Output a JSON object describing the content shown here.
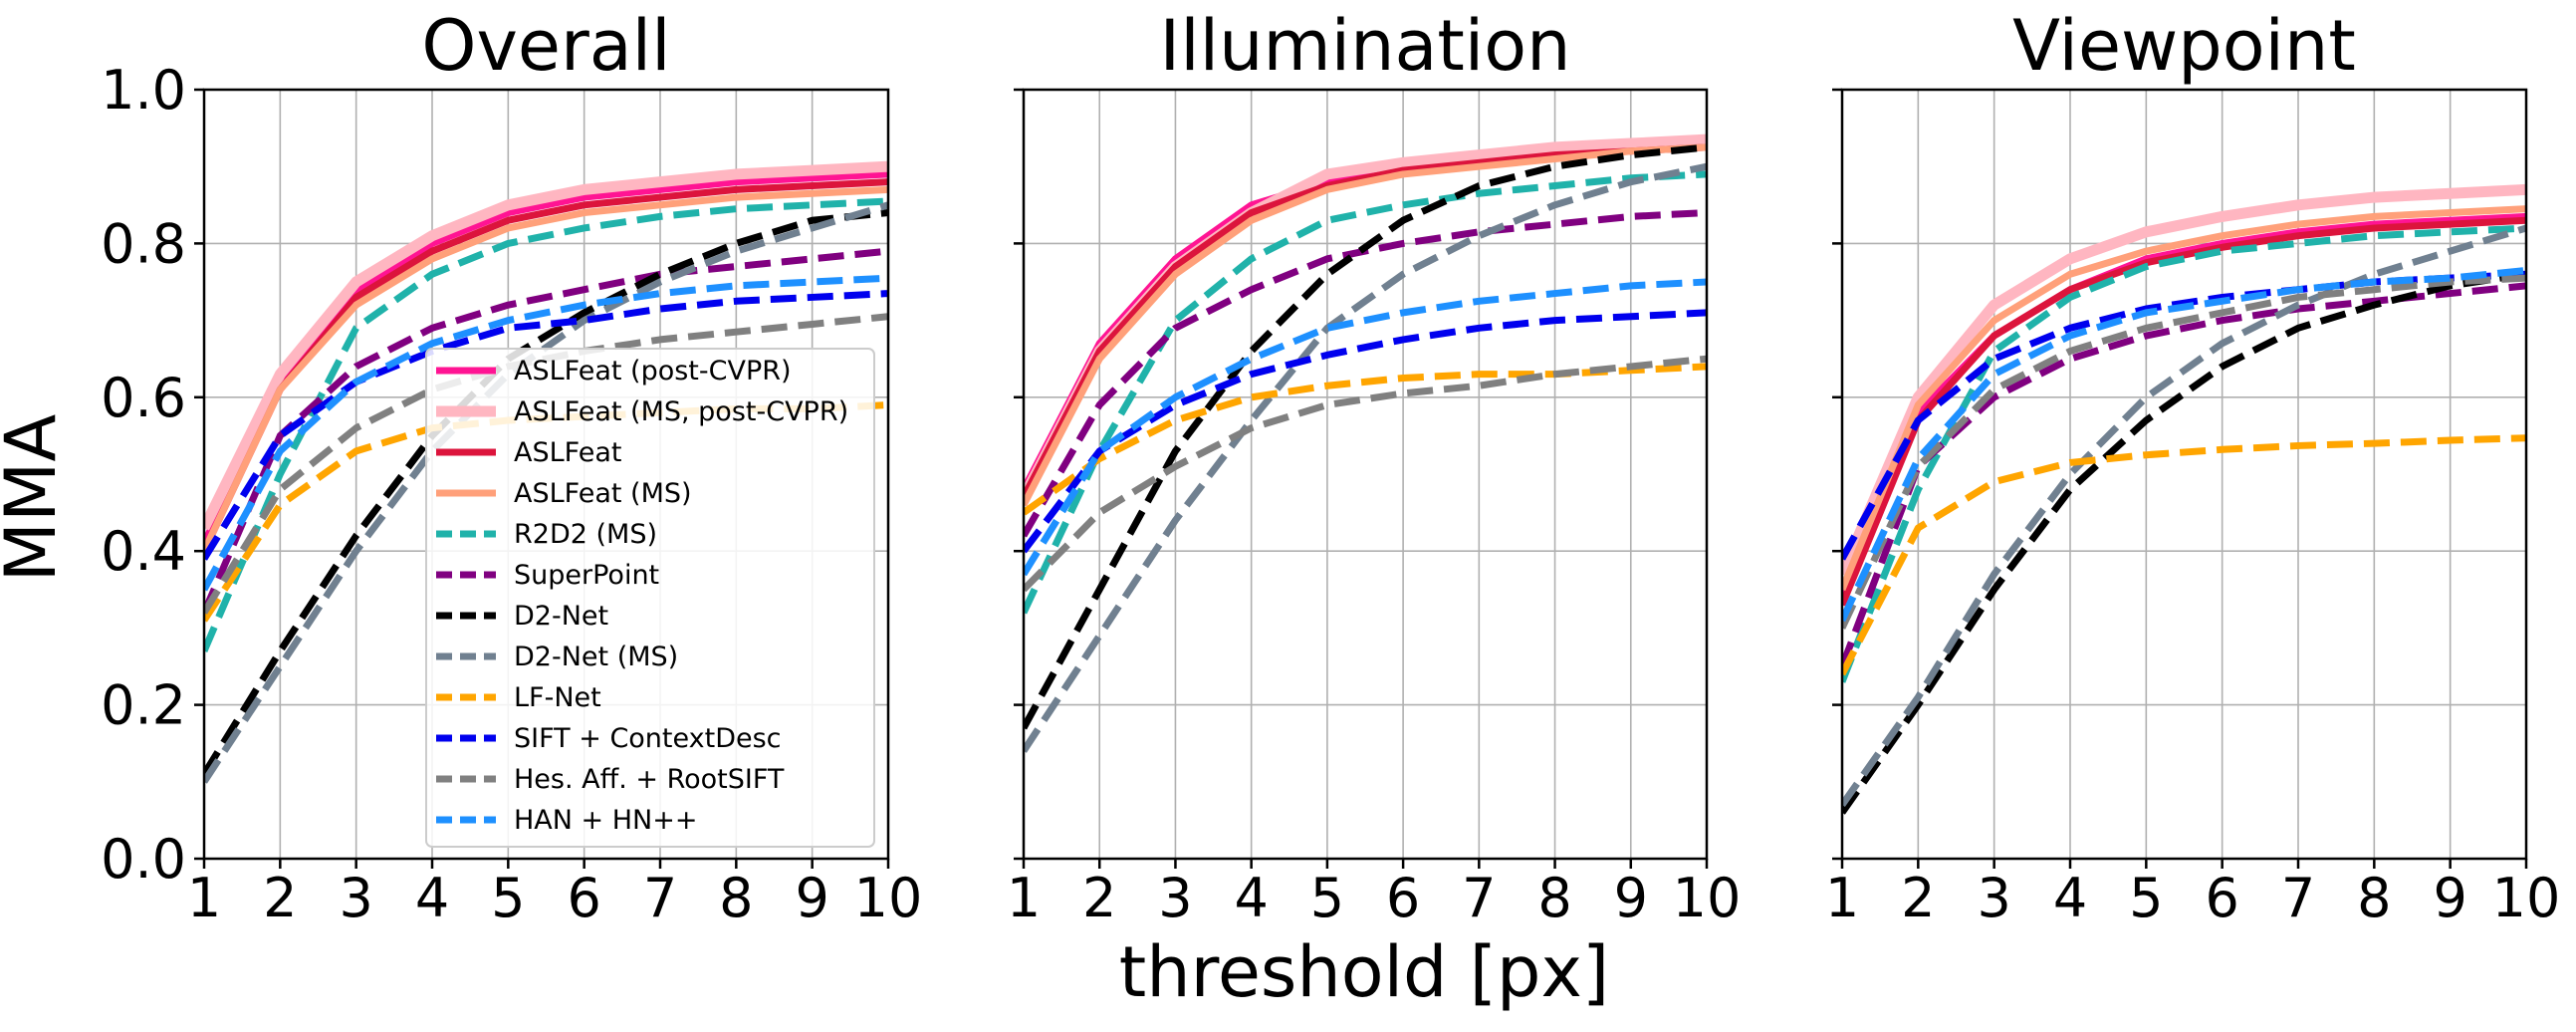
{
  "chart_data": {
    "type": "line",
    "ylabel": "MMA",
    "xlabel": "threshold [px]",
    "ylim": [
      0,
      1
    ],
    "xlim": [
      1,
      10
    ],
    "xticks": [
      "1",
      "2",
      "3",
      "4",
      "5",
      "6",
      "7",
      "8",
      "9",
      "10"
    ],
    "yticks": [
      "0.0",
      "0.2",
      "0.4",
      "0.6",
      "0.8",
      "1.0"
    ],
    "grid": true,
    "legend_position": "inside lower-right of first panel",
    "series_styles": [
      {
        "name": "ASLFeat (post-CVPR)",
        "color": "#ff1493",
        "dash": "solid",
        "width": 7
      },
      {
        "name": "ASLFeat (MS, post-CVPR)",
        "color": "#ffb6c1",
        "dash": "solid",
        "width": 11
      },
      {
        "name": "ASLFeat",
        "color": "#dc143c",
        "dash": "solid",
        "width": 7
      },
      {
        "name": "ASLFeat (MS)",
        "color": "#ffa07a",
        "dash": "solid",
        "width": 7
      },
      {
        "name": "R2D2 (MS)",
        "color": "#20b2aa",
        "dash": "dashed",
        "width": 7
      },
      {
        "name": "SuperPoint",
        "color": "#800080",
        "dash": "dashed",
        "width": 7
      },
      {
        "name": "D2-Net",
        "color": "#000000",
        "dash": "dashed",
        "width": 7
      },
      {
        "name": "D2-Net (MS)",
        "color": "#708090",
        "dash": "dashed",
        "width": 7
      },
      {
        "name": "LF-Net",
        "color": "#ffa500",
        "dash": "dashed",
        "width": 7
      },
      {
        "name": "SIFT + ContextDesc",
        "color": "#0000ee",
        "dash": "dashed",
        "width": 7
      },
      {
        "name": "Hes. Aff. + RootSIFT",
        "color": "#808080",
        "dash": "dashed",
        "width": 7
      },
      {
        "name": "HAN + HN++",
        "color": "#1e90ff",
        "dash": "dashed",
        "width": 7
      }
    ],
    "panels": [
      {
        "title": "Overall",
        "x": [
          1,
          2,
          3,
          4,
          5,
          6,
          7,
          8,
          9,
          10
        ],
        "series": [
          {
            "name": "ASLFeat (post-CVPR)",
            "values": [
              0.41,
              0.62,
              0.74,
              0.8,
              0.84,
              0.86,
              0.87,
              0.88,
              0.885,
              0.89
            ]
          },
          {
            "name": "ASLFeat (MS, post-CVPR)",
            "values": [
              0.43,
              0.63,
              0.75,
              0.81,
              0.85,
              0.87,
              0.88,
              0.89,
              0.895,
              0.9
            ]
          },
          {
            "name": "ASLFeat",
            "values": [
              0.4,
              0.61,
              0.73,
              0.79,
              0.83,
              0.85,
              0.86,
              0.87,
              0.875,
              0.88
            ]
          },
          {
            "name": "ASLFeat (MS)",
            "values": [
              0.4,
              0.61,
              0.72,
              0.78,
              0.82,
              0.84,
              0.85,
              0.86,
              0.865,
              0.87
            ]
          },
          {
            "name": "R2D2 (MS)",
            "values": [
              0.27,
              0.5,
              0.69,
              0.76,
              0.8,
              0.82,
              0.835,
              0.845,
              0.85,
              0.855
            ]
          },
          {
            "name": "SuperPoint",
            "values": [
              0.32,
              0.55,
              0.64,
              0.69,
              0.72,
              0.74,
              0.76,
              0.77,
              0.78,
              0.79
            ]
          },
          {
            "name": "D2-Net",
            "values": [
              0.11,
              0.27,
              0.42,
              0.55,
              0.65,
              0.71,
              0.76,
              0.8,
              0.83,
              0.84
            ]
          },
          {
            "name": "D2-Net (MS)",
            "values": [
              0.1,
              0.25,
              0.4,
              0.53,
              0.63,
              0.7,
              0.75,
              0.79,
              0.82,
              0.85
            ]
          },
          {
            "name": "LF-Net",
            "values": [
              0.31,
              0.46,
              0.53,
              0.56,
              0.57,
              0.575,
              0.58,
              0.585,
              0.585,
              0.59
            ]
          },
          {
            "name": "SIFT + ContextDesc",
            "values": [
              0.39,
              0.55,
              0.62,
              0.66,
              0.69,
              0.7,
              0.715,
              0.725,
              0.73,
              0.735
            ]
          },
          {
            "name": "Hes. Aff. + RootSIFT",
            "values": [
              0.32,
              0.48,
              0.56,
              0.61,
              0.64,
              0.66,
              0.675,
              0.685,
              0.695,
              0.705
            ]
          },
          {
            "name": "HAN + HN++",
            "values": [
              0.35,
              0.53,
              0.62,
              0.67,
              0.7,
              0.72,
              0.735,
              0.745,
              0.75,
              0.755
            ]
          }
        ]
      },
      {
        "title": "Illumination",
        "x": [
          1,
          2,
          3,
          4,
          5,
          6,
          7,
          8,
          9,
          10
        ],
        "series": [
          {
            "name": "ASLFeat (post-CVPR)",
            "values": [
              0.48,
              0.67,
              0.78,
              0.85,
              0.88,
              0.9,
              0.91,
              0.92,
              0.925,
              0.93
            ]
          },
          {
            "name": "ASLFeat (MS, post-CVPR)",
            "values": [
              0.47,
              0.66,
              0.77,
              0.84,
              0.89,
              0.905,
              0.915,
              0.925,
              0.93,
              0.935
            ]
          },
          {
            "name": "ASLFeat",
            "values": [
              0.47,
              0.66,
              0.77,
              0.84,
              0.875,
              0.895,
              0.905,
              0.915,
              0.92,
              0.925
            ]
          },
          {
            "name": "ASLFeat (MS)",
            "values": [
              0.46,
              0.65,
              0.76,
              0.83,
              0.87,
              0.89,
              0.9,
              0.91,
              0.92,
              0.925
            ]
          },
          {
            "name": "R2D2 (MS)",
            "values": [
              0.32,
              0.53,
              0.7,
              0.78,
              0.83,
              0.85,
              0.865,
              0.875,
              0.885,
              0.89
            ]
          },
          {
            "name": "SuperPoint",
            "values": [
              0.42,
              0.59,
              0.69,
              0.74,
              0.78,
              0.8,
              0.815,
              0.825,
              0.835,
              0.84
            ]
          },
          {
            "name": "D2-Net",
            "values": [
              0.17,
              0.35,
              0.53,
              0.66,
              0.76,
              0.83,
              0.875,
              0.9,
              0.915,
              0.925
            ]
          },
          {
            "name": "D2-Net (MS)",
            "values": [
              0.14,
              0.29,
              0.44,
              0.57,
              0.69,
              0.76,
              0.81,
              0.85,
              0.88,
              0.9
            ]
          },
          {
            "name": "LF-Net",
            "values": [
              0.45,
              0.52,
              0.57,
              0.6,
              0.615,
              0.625,
              0.63,
              0.63,
              0.635,
              0.64
            ]
          },
          {
            "name": "SIFT + ContextDesc",
            "values": [
              0.4,
              0.53,
              0.59,
              0.63,
              0.655,
              0.675,
              0.69,
              0.7,
              0.705,
              0.71
            ]
          },
          {
            "name": "Hes. Aff. + RootSIFT",
            "values": [
              0.35,
              0.45,
              0.51,
              0.56,
              0.59,
              0.605,
              0.615,
              0.63,
              0.64,
              0.65
            ]
          },
          {
            "name": "HAN + HN++",
            "values": [
              0.37,
              0.53,
              0.6,
              0.65,
              0.69,
              0.71,
              0.725,
              0.735,
              0.745,
              0.75
            ]
          }
        ]
      },
      {
        "title": "Viewpoint",
        "x": [
          1,
          2,
          3,
          4,
          5,
          6,
          7,
          8,
          9,
          10
        ],
        "series": [
          {
            "name": "ASLFeat (post-CVPR)",
            "values": [
              0.34,
              0.58,
              0.68,
              0.74,
              0.78,
              0.8,
              0.815,
              0.825,
              0.83,
              0.835
            ]
          },
          {
            "name": "ASLFeat (MS, post-CVPR)",
            "values": [
              0.37,
              0.6,
              0.72,
              0.78,
              0.815,
              0.835,
              0.85,
              0.86,
              0.865,
              0.87
            ]
          },
          {
            "name": "ASLFeat",
            "values": [
              0.33,
              0.57,
              0.68,
              0.74,
              0.775,
              0.795,
              0.81,
              0.82,
              0.825,
              0.83
            ]
          },
          {
            "name": "ASLFeat (MS)",
            "values": [
              0.35,
              0.59,
              0.7,
              0.76,
              0.79,
              0.81,
              0.825,
              0.835,
              0.84,
              0.845
            ]
          },
          {
            "name": "R2D2 (MS)",
            "values": [
              0.23,
              0.48,
              0.66,
              0.73,
              0.77,
              0.79,
              0.8,
              0.81,
              0.815,
              0.82
            ]
          },
          {
            "name": "SuperPoint",
            "values": [
              0.25,
              0.51,
              0.6,
              0.65,
              0.68,
              0.7,
              0.715,
              0.725,
              0.735,
              0.745
            ]
          },
          {
            "name": "D2-Net",
            "values": [
              0.06,
              0.2,
              0.35,
              0.48,
              0.57,
              0.64,
              0.69,
              0.72,
              0.745,
              0.76
            ]
          },
          {
            "name": "D2-Net (MS)",
            "values": [
              0.07,
              0.21,
              0.37,
              0.5,
              0.6,
              0.67,
              0.72,
              0.76,
              0.79,
              0.82
            ]
          },
          {
            "name": "LF-Net",
            "values": [
              0.24,
              0.43,
              0.49,
              0.515,
              0.525,
              0.532,
              0.537,
              0.54,
              0.544,
              0.547
            ]
          },
          {
            "name": "SIFT + ContextDesc",
            "values": [
              0.39,
              0.57,
              0.65,
              0.69,
              0.715,
              0.73,
              0.74,
              0.75,
              0.755,
              0.76
            ]
          },
          {
            "name": "Hes. Aff. + RootSIFT",
            "values": [
              0.3,
              0.51,
              0.61,
              0.66,
              0.69,
              0.71,
              0.73,
              0.74,
              0.75,
              0.755
            ]
          },
          {
            "name": "HAN + HN++",
            "values": [
              0.31,
              0.52,
              0.63,
              0.68,
              0.71,
              0.725,
              0.74,
              0.75,
              0.755,
              0.765
            ]
          }
        ]
      }
    ]
  }
}
